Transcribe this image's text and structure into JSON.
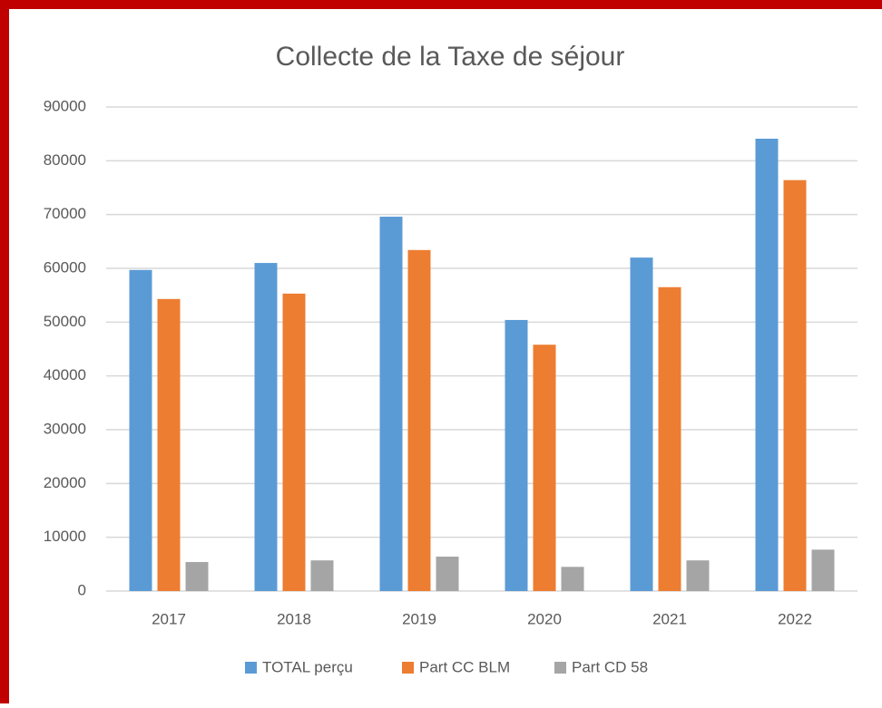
{
  "chart_data": {
    "type": "bar",
    "title": "Collecte de la Taxe de séjour",
    "categories": [
      "2017",
      "2018",
      "2019",
      "2020",
      "2021",
      "2022"
    ],
    "series": [
      {
        "name": "TOTAL perçu",
        "color": "#5b9bd5",
        "values": [
          59700,
          61000,
          69600,
          50400,
          62000,
          84100
        ]
      },
      {
        "name": "Part CC BLM",
        "color": "#ed7d31",
        "values": [
          54300,
          55300,
          63400,
          45800,
          56500,
          76400
        ]
      },
      {
        "name": "Part CD 58",
        "color": "#a5a5a5",
        "values": [
          5400,
          5700,
          6400,
          4500,
          5700,
          7700
        ]
      }
    ],
    "ylim": [
      0,
      90000
    ],
    "yticks": [
      0,
      10000,
      20000,
      30000,
      40000,
      50000,
      60000,
      70000,
      80000,
      90000
    ],
    "grid": true,
    "legend": "bottom"
  }
}
